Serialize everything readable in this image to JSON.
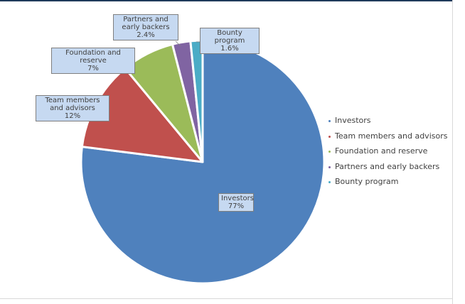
{
  "chart_data": {
    "type": "pie",
    "title": "",
    "slices": [
      {
        "name": "Investors",
        "label": "Investors",
        "value": 77,
        "value_label": "77%",
        "color": "#4f81bd"
      },
      {
        "name": "Team members and advisors",
        "label": "Team members and advisors",
        "value": 12,
        "value_label": "12%",
        "color": "#c0504d"
      },
      {
        "name": "Foundation and reserve",
        "label": "Foundation and reserve",
        "value": 7,
        "value_label": "7%",
        "color": "#9bbb59"
      },
      {
        "name": "Partners and early backers",
        "label": "Partners and early backers",
        "value": 2.4,
        "value_label": "2.4%",
        "color": "#8064a2"
      },
      {
        "name": "Bounty program",
        "label": "Bounty program",
        "value": 1.6,
        "value_label": "1.6%",
        "color": "#4bacc6"
      }
    ],
    "legend": {
      "position": "right",
      "entries": [
        "Investors",
        "Team members and advisors",
        "Foundation and reserve",
        "Partners and early backers",
        "Bounty program"
      ]
    },
    "label_box_color": "#c6d9f1"
  }
}
